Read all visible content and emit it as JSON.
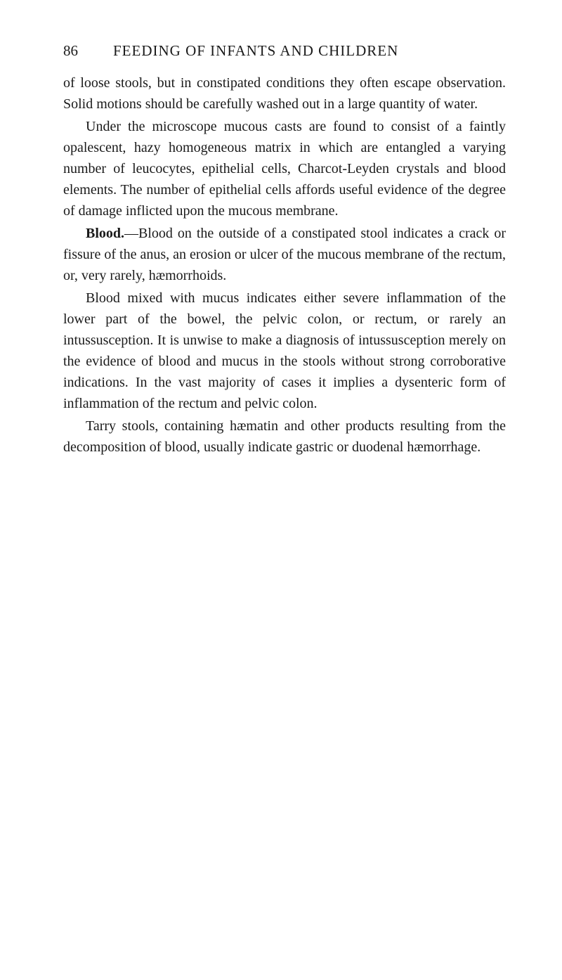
{
  "pageNumber": "86",
  "pageTitle": "FEEDING OF INFANTS AND CHILDREN",
  "paragraphs": {
    "p1": "of loose stools, but in constipated conditions they often escape observation. Solid motions should be carefully washed out in a large quantity of water.",
    "p2": "Under the microscope mucous casts are found to consist of a faintly opalescent, hazy homogeneous matrix in which are en­tangled a varying number of leucocytes, epithelial cells, Charcot-Leyden crystals and blood elements. The number of epithelial cells affords useful evidence of the degree of damage inflicted upon the mucous membrane.",
    "p3_label": "Blood.",
    "p3": "—Blood on the outside of a constipated stool indicates a crack or fissure of the anus, an erosion or ulcer of the mucous membrane of the rectum, or, very rarely, hæmorrhoids.",
    "p4": "Blood mixed with mucus indicates either severe inflammation of the lower part of the bowel, the pelvic colon, or rectum, or rarely an intussusception. It is unwise to make a diagnosis of intus­susception merely on the evidence of blood and mucus in the stools without strong corroborative indications. In the vast majority of cases it implies a dysenteric form of inflammation of the rectum and pelvic colon.",
    "p5": "Tarry stools, containing hæmatin and other products resulting from the decomposition of blood, usually indicate gastric or duodenal hæmorrhage."
  }
}
